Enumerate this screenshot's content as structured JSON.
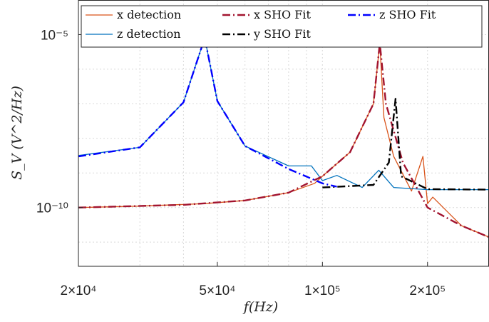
{
  "chart_data": {
    "type": "line",
    "title": "",
    "xlabel": "f(Hz)",
    "ylabel": "S_V (V^2/Hz)",
    "xscale": "log",
    "yscale": "log",
    "xlim": [
      20000,
      300000
    ],
    "ylim": [
      2e-12,
      0.0001
    ],
    "grid": true,
    "legend_position": "top-right",
    "xticks": [
      {
        "value": 20000,
        "label": "2×10⁴"
      },
      {
        "value": 50000,
        "label": "5×10⁴"
      },
      {
        "value": 100000,
        "label": "1×10⁵"
      },
      {
        "value": 200000,
        "label": "2×10⁵"
      }
    ],
    "yticks": [
      {
        "value": 1e-10,
        "label": "10⁻¹⁰"
      },
      {
        "value": 1e-05,
        "label": "10⁻⁵"
      }
    ],
    "series": [
      {
        "name": "x detection",
        "color": "#D95319",
        "style": "solid",
        "x": [
          20000,
          30000,
          46000,
          60000,
          80000,
          95000,
          100000,
          120000,
          140000,
          146000,
          150000,
          160000,
          180000,
          194000,
          200000,
          207000,
          250000,
          300000
        ],
        "y": [
          1e-10,
          1.1e-10,
          1.3e-10,
          1.6e-10,
          2.7e-10,
          5e-10,
          8e-10,
          4e-09,
          1e-07,
          5.6e-06,
          4e-08,
          3e-09,
          3e-10,
          3e-09,
          1.3e-10,
          2e-10,
          3e-11,
          1.4e-11
        ]
      },
      {
        "name": "z detection",
        "color": "#0072BD",
        "style": "solid",
        "x": [
          20000,
          30000,
          40000,
          46000,
          50000,
          60000,
          80000,
          93000,
          100000,
          110000,
          130000,
          145000,
          160000,
          200000,
          300000
        ],
        "y": [
          3.2e-09,
          5.5e-09,
          1.1e-07,
          8e-06,
          1.2e-07,
          6e-09,
          1.6e-09,
          1.6e-09,
          6e-10,
          8.5e-10,
          3.8e-10,
          1.2e-09,
          3.8e-10,
          3.3e-10,
          3.3e-10
        ]
      },
      {
        "name": "x SHO Fit",
        "color": "#A2142F",
        "style": "dashdot",
        "x": [
          20000,
          40000,
          60000,
          80000,
          100000,
          120000,
          140000,
          146000,
          152000,
          170000,
          200000,
          250000,
          300000
        ],
        "y": [
          1e-10,
          1.2e-10,
          1.6e-10,
          2.7e-10,
          8e-10,
          4e-09,
          1e-07,
          5.6e-06,
          1e-07,
          2e-09,
          1e-10,
          3e-11,
          1.4e-11
        ]
      },
      {
        "name": "y SHO Fit",
        "color": "#000000",
        "style": "dashdot",
        "x": [
          100000,
          140000,
          155000,
          162000,
          168000,
          200000,
          300000
        ],
        "y": [
          3.8e-10,
          4.5e-10,
          2e-09,
          1.4e-07,
          8e-10,
          3.4e-10,
          3.3e-10
        ]
      },
      {
        "name": "z SHO Fit",
        "color": "#0000FF",
        "style": "dashdot",
        "x": [
          20000,
          30000,
          40000,
          46000,
          50000,
          60000,
          80000,
          100000,
          110000
        ],
        "y": [
          3e-09,
          5.5e-09,
          1.1e-07,
          8e-06,
          1.2e-07,
          6e-09,
          1.3e-09,
          5e-10,
          4e-10
        ]
      }
    ]
  }
}
